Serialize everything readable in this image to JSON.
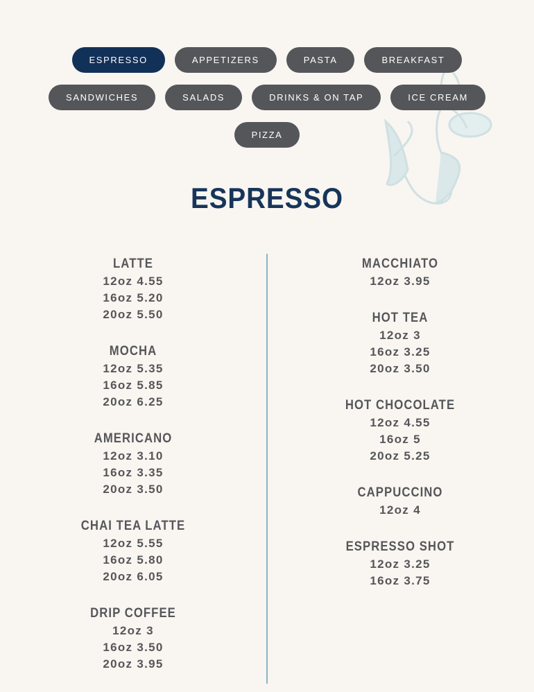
{
  "nav": {
    "rows": [
      [
        {
          "label": "ESPRESSO",
          "active": true
        },
        {
          "label": "APPETIZERS"
        },
        {
          "label": "PASTA"
        },
        {
          "label": "BREAKFAST"
        }
      ],
      [
        {
          "label": "SANDWICHES"
        },
        {
          "label": "SALADS"
        },
        {
          "label": "DRINKS & ON TAP"
        },
        {
          "label": "ICE CREAM"
        }
      ],
      [
        {
          "label": "PIZZA"
        }
      ]
    ]
  },
  "section_title": "ESPRESSO",
  "colors": {
    "active": "#123158",
    "button": "#55565a",
    "title": "#17355a",
    "divider": "#8ab4c6",
    "background": "#f9f5f0"
  },
  "decoration_icon": "mermaid-illustration",
  "menu": {
    "left": [
      {
        "name": "LATTE",
        "prices": [
          "12oz 4.55",
          "16oz 5.20",
          "20oz 5.50"
        ]
      },
      {
        "name": "MOCHA",
        "prices": [
          "12oz 5.35",
          "16oz 5.85",
          "20oz 6.25"
        ]
      },
      {
        "name": "AMERICANO",
        "prices": [
          "12oz 3.10",
          "16oz 3.35",
          "20oz 3.50"
        ]
      },
      {
        "name": "CHAI TEA LATTE",
        "prices": [
          "12oz 5.55",
          "16oz 5.80",
          "20oz 6.05"
        ]
      },
      {
        "name": "DRIP COFFEE",
        "prices": [
          "12oz 3",
          "16oz 3.50",
          "20oz 3.95"
        ]
      }
    ],
    "right": [
      {
        "name": "MACCHIATO",
        "prices": [
          "12oz 3.95"
        ]
      },
      {
        "name": "HOT TEA",
        "prices": [
          "12oz 3",
          "16oz 3.25",
          "20oz 3.50"
        ]
      },
      {
        "name": "HOT CHOCOLATE",
        "prices": [
          "12oz 4.55",
          "16oz 5",
          "20oz 5.25"
        ]
      },
      {
        "name": "CAPPUCCINO",
        "prices": [
          "12oz 4"
        ]
      },
      {
        "name": "ESPRESSO SHOT",
        "prices": [
          "12oz 3.25",
          "16oz 3.75"
        ]
      }
    ]
  }
}
